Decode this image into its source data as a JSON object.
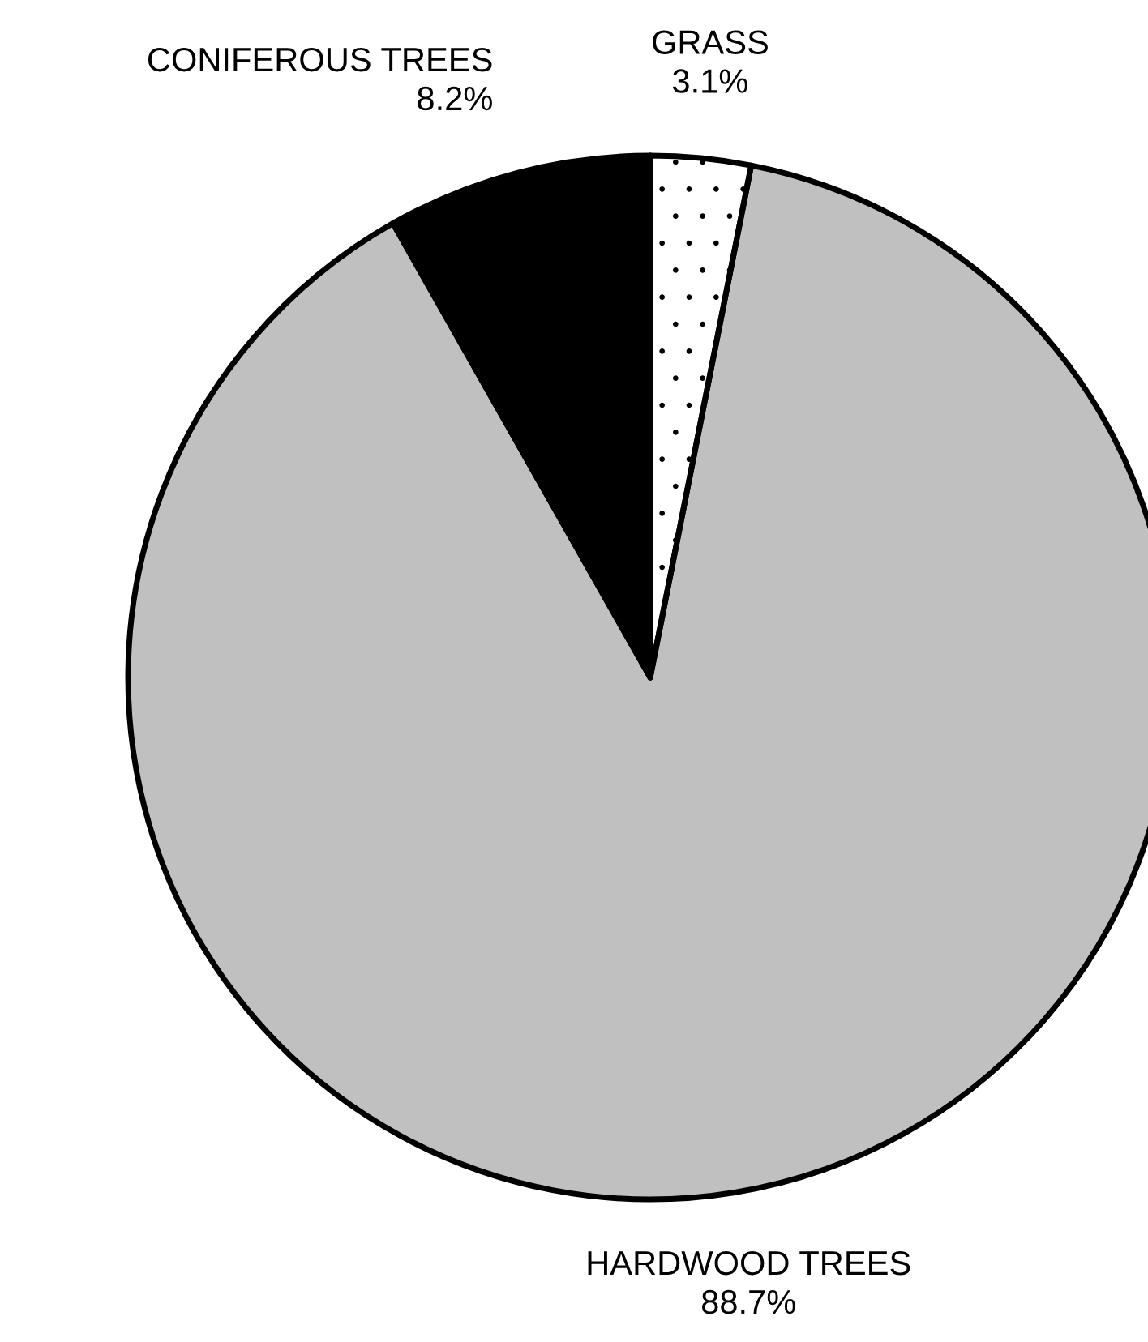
{
  "chart_data": {
    "type": "pie",
    "categories": [
      "GRASS",
      "HARDWOOD TREES",
      "CONIFEROUS TREES"
    ],
    "values": [
      3.1,
      88.7,
      8.2
    ],
    "colors": [
      "#ffffff",
      "#c0c0c0",
      "#000000"
    ],
    "data_labels": true,
    "value_labels": [
      "3.1%",
      "88.7%",
      "8.2%"
    ]
  }
}
